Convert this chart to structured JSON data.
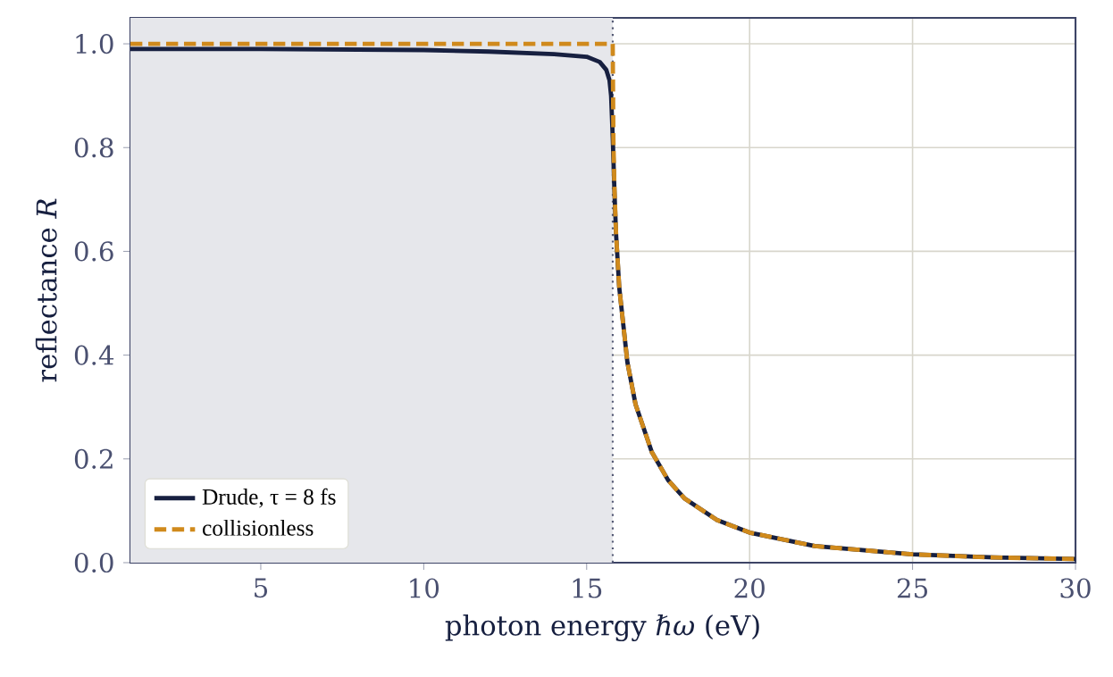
{
  "chart_data": {
    "type": "line",
    "xlabel": "photon energy *ℏω*  (eV)",
    "ylabel": "reflectance *R*",
    "xlim": [
      1,
      30
    ],
    "ylim": [
      0,
      1.05
    ],
    "xticks": [
      5,
      10,
      15,
      20,
      25,
      30
    ],
    "yticks": [
      {
        "value": 0,
        "label": "0.0"
      },
      0.2,
      0.4,
      0.6,
      0.8,
      {
        "value": 1,
        "label": "1.0"
      }
    ],
    "grid": true,
    "legend": "bottom left",
    "bands": [
      {
        "axis": "x",
        "from": 1,
        "to": 15.8,
        "color": "#e6e7eb"
      }
    ],
    "ref_lines": [
      {
        "axis": "x",
        "value": 15.8,
        "color": "#555a75",
        "line_style": "dotted"
      }
    ],
    "series": [
      {
        "name": "Drude, τ = 8 fs",
        "color": "#172040",
        "line_style": "solid",
        "x": [
          1,
          5,
          10,
          12,
          14,
          15,
          15.4,
          15.6,
          15.7,
          15.75,
          15.8,
          15.85,
          15.9,
          16,
          16.25,
          16.5,
          17,
          17.5,
          18,
          19,
          20,
          22,
          25,
          27.5,
          30
        ],
        "values": [
          0.99,
          0.99,
          0.988,
          0.985,
          0.98,
          0.975,
          0.965,
          0.95,
          0.93,
          0.9,
          0.82,
          0.72,
          0.635,
          0.53,
          0.386,
          0.305,
          0.213,
          0.159,
          0.124,
          0.082,
          0.058,
          0.032,
          0.016,
          0.01,
          0.007
        ]
      },
      {
        "name": "collisionless",
        "color": "#d08a1c",
        "line_style": "dashed",
        "x": [
          1,
          15.8,
          15.8,
          15.82,
          15.85,
          15.9,
          16,
          16.25,
          16.5,
          17,
          17.5,
          18,
          19,
          20,
          22,
          25,
          27.5,
          30
        ],
        "values": [
          1.0,
          1.0,
          1.0,
          0.818,
          0.727,
          0.638,
          0.53,
          0.386,
          0.305,
          0.213,
          0.159,
          0.124,
          0.082,
          0.058,
          0.032,
          0.016,
          0.01,
          0.007
        ]
      }
    ]
  }
}
